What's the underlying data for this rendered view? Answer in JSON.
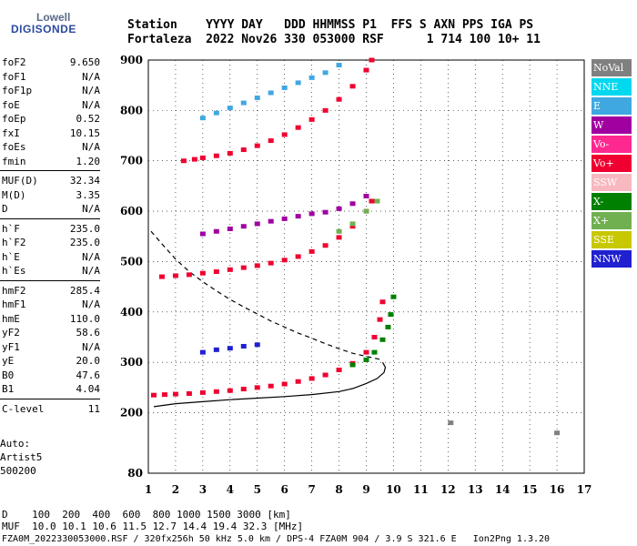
{
  "logo": {
    "line1": "Lowell",
    "line2": "DIGISONDE"
  },
  "header": {
    "row1": "Station    YYYY DAY   DDD HHMMSS P1  FFS S AXN PPS IGA PS",
    "row2": "Fortaleza  2022 Nov26 330 053000 RSF      1 714 100 10+ 11"
  },
  "params": [
    {
      "name": "foF2",
      "value": "9.650"
    },
    {
      "name": "foF1",
      "value": "N/A"
    },
    {
      "name": "foF1p",
      "value": "N/A"
    },
    {
      "name": "foE",
      "value": "N/A"
    },
    {
      "name": "foEp",
      "value": "0.52"
    },
    {
      "name": "fxI",
      "value": "10.15"
    },
    {
      "name": "foEs",
      "value": "N/A"
    },
    {
      "name": "fmin",
      "value": "1.20"
    },
    {
      "name": "MUF(D)",
      "value": "32.34"
    },
    {
      "name": "M(D)",
      "value": "3.35"
    },
    {
      "name": "D",
      "value": "N/A"
    },
    {
      "name": "h`F",
      "value": "235.0"
    },
    {
      "name": "h`F2",
      "value": "235.0"
    },
    {
      "name": "h`E",
      "value": "N/A"
    },
    {
      "name": "h`Es",
      "value": "N/A"
    },
    {
      "name": "hmF2",
      "value": "285.4"
    },
    {
      "name": "hmF1",
      "value": "N/A"
    },
    {
      "name": "hmE",
      "value": "110.0"
    },
    {
      "name": "yF2",
      "value": "58.6"
    },
    {
      "name": "yF1",
      "value": "N/A"
    },
    {
      "name": "yE",
      "value": "20.0"
    },
    {
      "name": "B0",
      "value": "47.6"
    },
    {
      "name": "B1",
      "value": "4.04"
    },
    {
      "name": "C-level",
      "value": "11"
    }
  ],
  "auto": {
    "line1": "Auto:",
    "line2": "Artist5",
    "line3": "500200"
  },
  "legend": [
    {
      "label": "NoVal",
      "color": "#808080"
    },
    {
      "label": "NNE",
      "color": "#00d8f0"
    },
    {
      "label": "E",
      "color": "#40a8e0"
    },
    {
      "label": "W",
      "color": "#a000a0"
    },
    {
      "label": "Vo-",
      "color": "#ff2890"
    },
    {
      "label": "Vo+",
      "color": "#f00030"
    },
    {
      "label": "SSW",
      "color": "#f8b8c0"
    },
    {
      "label": "X-",
      "color": "#008000"
    },
    {
      "label": "X+",
      "color": "#70b050"
    },
    {
      "label": "SSE",
      "color": "#c8c800"
    },
    {
      "label": "NNW",
      "color": "#2020d0"
    }
  ],
  "footer": {
    "line1": "D    100  200  400  600  800 1000 1500 3000 [km]",
    "line2": "MUF  10.0 10.1 10.6 11.5 12.7 14.4 19.4 32.3 [MHz]",
    "line3": "FZA0M_2022330053000.RSF / 320fx256h 50 kHz 5.0 km / DPS-4 FZA0M 904 / 3.9 S 321.6 E   Ion2Png 1.3.20"
  },
  "chart_data": {
    "type": "scatter",
    "xlabel": "",
    "ylabel": "",
    "xlim": [
      1,
      17
    ],
    "ylim": [
      80,
      900
    ],
    "xticks": [
      1,
      2,
      3,
      4,
      5,
      6,
      7,
      8,
      9,
      10,
      11,
      12,
      13,
      14,
      15,
      16,
      17
    ],
    "yticks": [
      80,
      200,
      300,
      400,
      500,
      600,
      700,
      800,
      900
    ],
    "grid": true,
    "series": [
      {
        "name": "Vo+",
        "color": "#f00030",
        "x": [
          1.2,
          1.6,
          2.0,
          2.5,
          3.0,
          3.5,
          4.0,
          4.5,
          5.0,
          5.5,
          6.0,
          6.5,
          7.0,
          7.5,
          8.0,
          8.5,
          9.0,
          9.3,
          9.5,
          9.6
        ],
        "y": [
          235,
          236,
          237,
          238,
          240,
          242,
          244,
          247,
          250,
          253,
          257,
          262,
          268,
          275,
          285,
          298,
          320,
          350,
          385,
          420
        ]
      },
      {
        "name": "Vo+ 2F",
        "color": "#f00030",
        "x": [
          1.5,
          2.0,
          2.5,
          3.0,
          3.5,
          4.0,
          4.5,
          5.0,
          5.5,
          6.0,
          6.5,
          7.0,
          7.5,
          8.0,
          8.5,
          9.0,
          9.2
        ],
        "y": [
          470,
          472,
          474,
          477,
          480,
          484,
          488,
          492,
          497,
          503,
          510,
          520,
          532,
          548,
          570,
          600,
          620
        ]
      },
      {
        "name": "Vo+ 3F",
        "color": "#f00030",
        "x": [
          2.3,
          2.7,
          3.0,
          3.5,
          4.0,
          4.5,
          5.0,
          5.5,
          6.0,
          6.5,
          7.0,
          7.5,
          8.0,
          8.5,
          9.0,
          9.2
        ],
        "y": [
          700,
          703,
          706,
          710,
          715,
          722,
          730,
          740,
          752,
          766,
          782,
          800,
          822,
          848,
          880,
          900
        ]
      },
      {
        "name": "X-",
        "color": "#008000",
        "x": [
          8.5,
          9.0,
          9.3,
          9.6,
          9.8,
          9.9,
          10.0
        ],
        "y": [
          295,
          305,
          320,
          345,
          370,
          395,
          430
        ]
      },
      {
        "name": "X+",
        "color": "#70b050",
        "x": [
          8.0,
          8.5,
          9.0,
          9.4
        ],
        "y": [
          560,
          575,
          600,
          620
        ]
      },
      {
        "name": "W",
        "color": "#a000a0",
        "x": [
          3.0,
          3.5,
          4.0,
          4.5,
          5.0,
          5.5,
          6.0,
          6.5,
          7.0,
          7.5,
          8.0,
          8.5,
          9.0
        ],
        "y": [
          555,
          560,
          565,
          570,
          575,
          580,
          585,
          590,
          595,
          598,
          605,
          615,
          630
        ]
      },
      {
        "name": "E",
        "color": "#40a8e0",
        "x": [
          3.0,
          3.5,
          4.0,
          4.5,
          5.0,
          5.5,
          6.0,
          6.5,
          7.0,
          7.5,
          8.0
        ],
        "y": [
          785,
          795,
          805,
          815,
          825,
          835,
          845,
          855,
          865,
          875,
          890
        ]
      },
      {
        "name": "NNW",
        "color": "#2020d0",
        "x": [
          3.0,
          3.5,
          4.0,
          4.5,
          5.0
        ],
        "y": [
          320,
          325,
          328,
          332,
          335
        ]
      },
      {
        "name": "NoVal",
        "color": "#808080",
        "x": [
          12.1,
          16.0
        ],
        "y": [
          180,
          160
        ]
      }
    ],
    "curves": [
      {
        "name": "profile",
        "style": "solid",
        "x": [
          1.2,
          2.0,
          3.0,
          4.0,
          5.0,
          6.0,
          7.0,
          8.0,
          8.5,
          9.0,
          9.4,
          9.65,
          9.7,
          9.6
        ],
        "y": [
          212,
          218,
          222,
          226,
          229,
          232,
          236,
          242,
          248,
          258,
          268,
          280,
          290,
          300
        ]
      },
      {
        "name": "muf",
        "style": "dashed",
        "x": [
          1.1,
          1.5,
          2.0,
          2.5,
          3.0,
          3.5,
          4.0,
          4.5,
          5.0,
          5.5,
          6.0,
          6.5,
          7.0,
          7.5,
          8.0,
          8.5,
          9.0,
          9.5
        ],
        "y": [
          560,
          535,
          505,
          480,
          460,
          442,
          425,
          410,
          396,
          382,
          370,
          358,
          348,
          337,
          327,
          318,
          312,
          306
        ]
      }
    ]
  }
}
